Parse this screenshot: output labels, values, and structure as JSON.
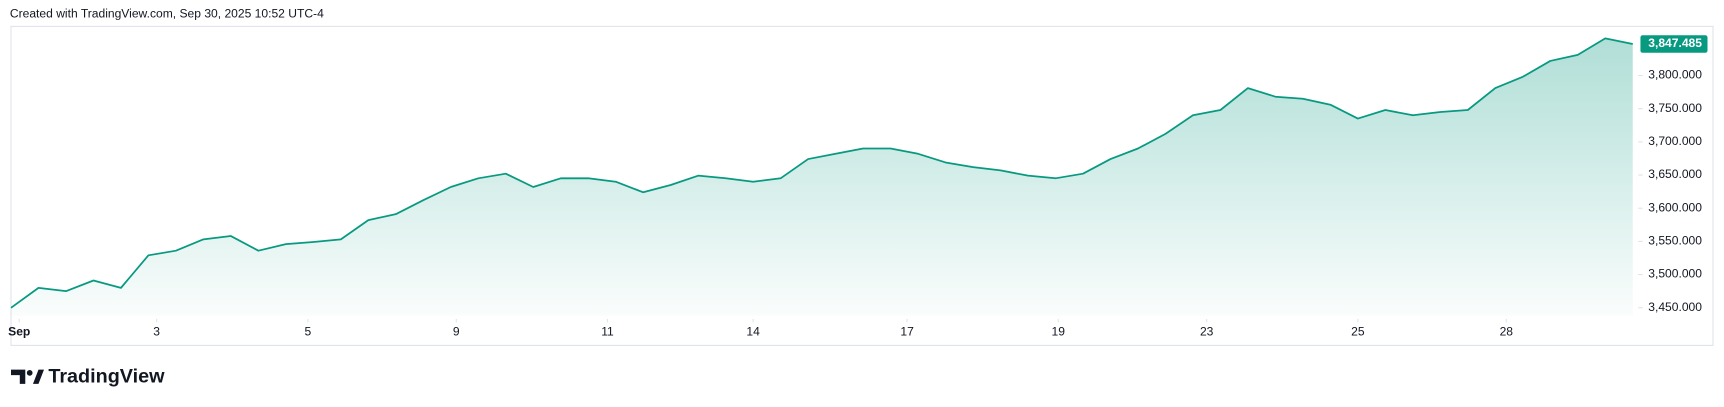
{
  "header": "Created with TradingView.com, Sep 30, 2025 10:52 UTC-4",
  "brand": "TradingView",
  "chart_data": {
    "type": "area",
    "color": "#089981",
    "x": [
      0,
      1,
      2,
      3,
      4,
      5,
      6,
      7,
      8,
      9,
      10,
      11,
      12,
      13,
      14,
      15,
      16,
      17,
      18,
      19,
      20,
      21,
      22,
      23,
      24,
      25,
      26,
      27,
      28,
      29,
      30,
      31,
      32,
      33,
      34,
      35,
      36,
      37,
      38,
      39,
      40,
      41,
      42,
      43,
      44,
      45,
      46,
      47,
      48,
      49,
      50,
      51,
      52,
      53,
      54,
      55,
      56,
      57,
      58,
      59
    ],
    "values": [
      3450,
      3480,
      3475,
      3491,
      3480,
      3529,
      3536,
      3553,
      3558,
      3536,
      3546,
      3549,
      3553,
      3582,
      3591,
      3612,
      3632,
      3645,
      3652,
      3632,
      3645,
      3645,
      3640,
      3624,
      3635,
      3649,
      3645,
      3640,
      3645,
      3674,
      3682,
      3690,
      3690,
      3682,
      3669,
      3662,
      3657,
      3649,
      3645,
      3652,
      3674,
      3690,
      3712,
      3740,
      3748,
      3781,
      3768,
      3765,
      3756,
      3735,
      3748,
      3740,
      3745,
      3748,
      3781,
      3798,
      3822,
      3831,
      3856,
      3847.485
    ],
    "value_labels": [
      null,
      null,
      null,
      null,
      null,
      null,
      null,
      null,
      null,
      null,
      null,
      null,
      null,
      null,
      null,
      null,
      null,
      null,
      null,
      null,
      null,
      null,
      null,
      null,
      null,
      null,
      null,
      null,
      null,
      null,
      null,
      null,
      null,
      null,
      null,
      null,
      null,
      null,
      null,
      null,
      null,
      null,
      null,
      null,
      null,
      null,
      null,
      null,
      null,
      null,
      null,
      null,
      null,
      null,
      null,
      null,
      null,
      null,
      null,
      "3,847.485"
    ],
    "xlim": [
      0,
      59
    ],
    "xticks": [
      {
        "value": 0.3,
        "label": "Sep"
      },
      {
        "value": 5.3,
        "label": "3"
      },
      {
        "value": 10.8,
        "label": "5"
      },
      {
        "value": 16.2,
        "label": "9"
      },
      {
        "value": 21.7,
        "label": "11"
      },
      {
        "value": 27,
        "label": "14"
      },
      {
        "value": 32.6,
        "label": "17"
      },
      {
        "value": 38.1,
        "label": "19"
      },
      {
        "value": 43.5,
        "label": "23"
      },
      {
        "value": 49,
        "label": "25"
      },
      {
        "value": 54.4,
        "label": "28"
      }
    ],
    "ylim": [
      3438,
      3874
    ],
    "yticks": [
      {
        "value": 3450,
        "label": "3,450.000"
      },
      {
        "value": 3500,
        "label": "3,500.000"
      },
      {
        "value": 3550,
        "label": "3,550.000"
      },
      {
        "value": 3600,
        "label": "3,600.000"
      },
      {
        "value": 3650,
        "label": "3,650.000"
      },
      {
        "value": 3700,
        "label": "3,700.000"
      },
      {
        "value": 3750,
        "label": "3,750.000"
      },
      {
        "value": 3800,
        "label": "3,800.000"
      }
    ],
    "grid": false
  }
}
